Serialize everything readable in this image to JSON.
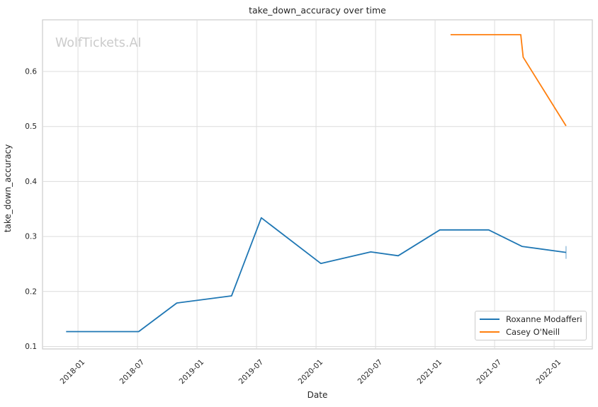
{
  "figure": {
    "title": "take_down_accuracy over time",
    "watermark": "WolfTickets.AI",
    "background": "#ffffff"
  },
  "colors": {
    "series_blue": "#1f77b4",
    "series_orange": "#ff7f0e",
    "grid": "#dcdcdc",
    "spine": "#cccccc",
    "text": "#262626",
    "watermark": "#cbcbcb",
    "legend_border": "#cccccc"
  },
  "chart_data": {
    "type": "line",
    "title": "take_down_accuracy over time",
    "xlabel": "Date",
    "ylabel": "take_down_accuracy",
    "grid": true,
    "legend_position": "lower right",
    "xlim": [
      2017.702,
      2022.321
    ],
    "ylim": [
      0.0955,
      0.694
    ],
    "x_tick_labels": [
      "2018-01",
      "2018-07",
      "2019-01",
      "2019-07",
      "2020-01",
      "2020-07",
      "2021-01",
      "2021-07",
      "2022-01"
    ],
    "x_tick_years": [
      2018.0,
      2018.5,
      2019.0,
      2019.5,
      2020.0,
      2020.5,
      2021.0,
      2021.5,
      2022.0
    ],
    "y_ticks": [
      0.1,
      0.2,
      0.3,
      0.4,
      0.5,
      0.6
    ],
    "y_tick_labels": [
      "0.1",
      "0.2",
      "0.3",
      "0.4",
      "0.5",
      "0.6"
    ],
    "series": [
      {
        "name": "Roxanne Modafferi",
        "color": "#1f77b4",
        "end_cap": true,
        "x_dates": [
          "2017-12",
          "2018-07",
          "2018-11",
          "2019-04",
          "2019-07",
          "2020-01",
          "2020-06",
          "2020-09",
          "2021-01",
          "2021-06",
          "2021-09",
          "2022-02"
        ],
        "x": [
          2017.9,
          2018.51,
          2018.83,
          2019.29,
          2019.54,
          2020.04,
          2020.46,
          2020.69,
          2021.04,
          2021.45,
          2021.73,
          2022.1
        ],
        "y": [
          0.127,
          0.127,
          0.179,
          0.192,
          0.334,
          0.251,
          0.272,
          0.265,
          0.312,
          0.312,
          0.282,
          0.271
        ]
      },
      {
        "name": "Casey O'Neill",
        "color": "#ff7f0e",
        "end_cap": false,
        "x_dates": [
          "2021-02",
          "2021-09",
          "2021-10",
          "2022-02"
        ],
        "x": [
          2021.13,
          2021.72,
          2021.74,
          2022.1
        ],
        "y": [
          0.667,
          0.667,
          0.626,
          0.501
        ]
      }
    ]
  }
}
